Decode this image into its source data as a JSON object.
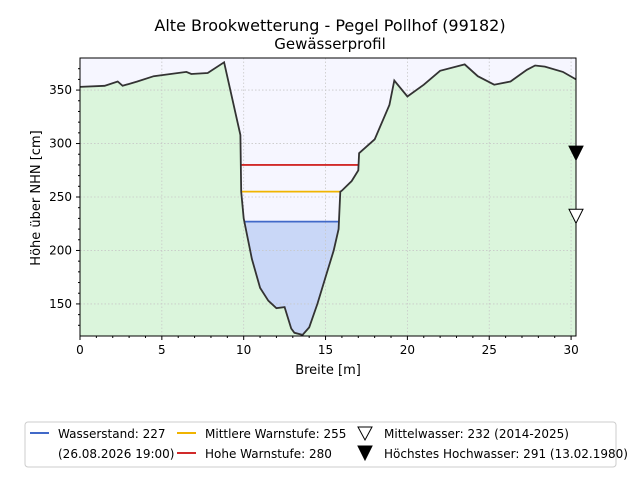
{
  "chart_data": {
    "type": "area",
    "title": "Alte Brookwetterung - Pegel Pollhof (99182)",
    "subtitle": "Gewässerprofil",
    "xlabel": "Breite [m]",
    "ylabel": "Höhe über NHN [cm]",
    "xlim": [
      0,
      30.3
    ],
    "ylim": [
      120,
      380
    ],
    "xticks": [
      0,
      5,
      10,
      15,
      20,
      25,
      30
    ],
    "yticks": [
      150,
      200,
      250,
      300,
      350
    ],
    "grid": true,
    "profile": {
      "x": [
        0,
        1.5,
        2.3,
        2.6,
        3.5,
        4.5,
        6.5,
        6.8,
        7.8,
        8.8,
        9.8,
        9.85,
        10.0,
        10.5,
        11.0,
        11.5,
        12.0,
        12.5,
        12.9,
        13.1,
        13.6,
        14.0,
        14.5,
        15.0,
        15.5,
        15.8,
        15.9,
        16.0,
        16.6,
        17.0,
        17.05,
        18.0,
        18.9,
        19.2,
        20.0,
        21.0,
        22.0,
        23.5,
        24.3,
        25.3,
        26.3,
        27.3,
        27.8,
        28.4,
        29.5,
        30.3
      ],
      "y": [
        353,
        354,
        358,
        354,
        358,
        363,
        367,
        365,
        366,
        376,
        308,
        255,
        230,
        192,
        165,
        153,
        146,
        147,
        127,
        123,
        121,
        128,
        150,
        175,
        200,
        220,
        255,
        256,
        265,
        275,
        291,
        304,
        336,
        359,
        344,
        355,
        368,
        374,
        363,
        355,
        358,
        369,
        373,
        372,
        367,
        360
      ]
    },
    "levels": [
      {
        "name": "Wasserstand: 227",
        "value": 227,
        "color": "#4169c8"
      },
      {
        "name": "Mittlere Warnstufe: 255",
        "value": 255,
        "color": "#f0b400"
      },
      {
        "name": "Hohe Warnstufe: 280",
        "value": 280,
        "color": "#d12a2a"
      }
    ],
    "markers": [
      {
        "name": "Mittelwasser: 232 (2014-2025)",
        "value": 232,
        "filled": false
      },
      {
        "name": "Höchstes Hochwasser: 291 (13.02.1980)",
        "value": 291,
        "filled": true
      }
    ],
    "legend": {
      "placement": "bottom",
      "water_level_date": "(26.08.2026 19:00)"
    },
    "colors": {
      "ground": "#dbf5dc",
      "sky": "#f6f6ff",
      "water": "#c9d7f7",
      "outline": "#333333"
    }
  }
}
